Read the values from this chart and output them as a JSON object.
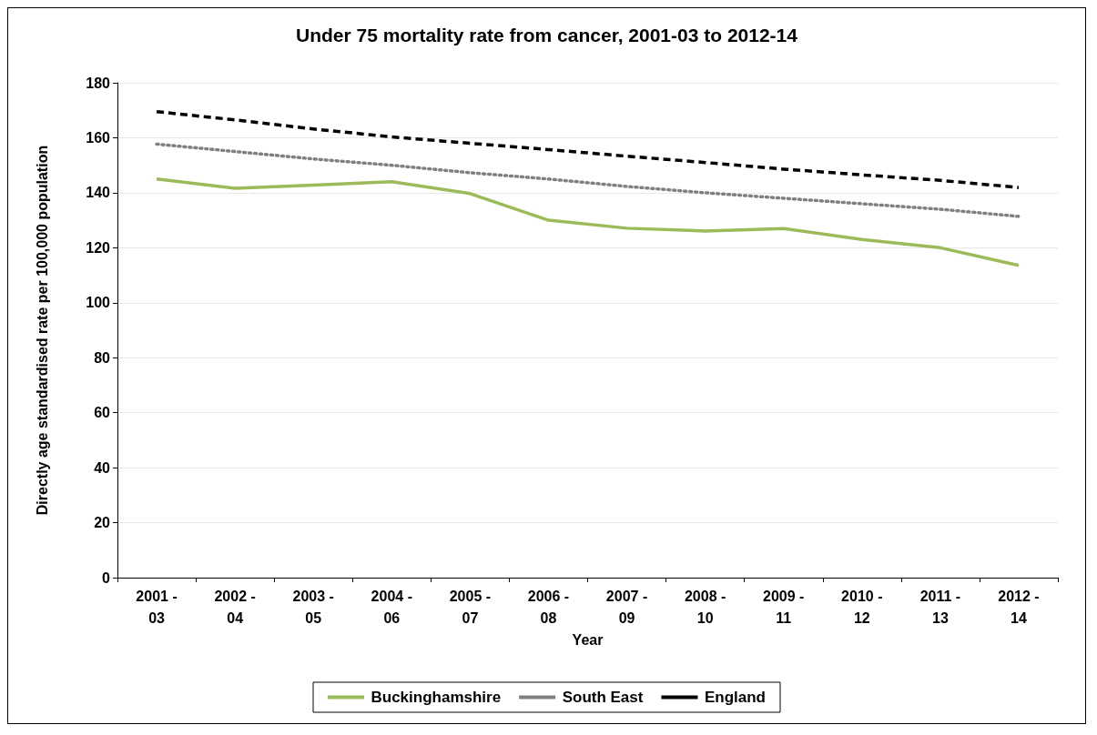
{
  "chart_data": {
    "type": "line",
    "title": "Under 75 mortality rate from cancer, 2001-03 to 2012-14",
    "xlabel": "Year",
    "ylabel": "Directly age standardised rate per 100,000 population",
    "categories": [
      "2001 - 03",
      "2002 - 04",
      "2003 - 05",
      "2004 - 06",
      "2005 - 07",
      "2006 - 08",
      "2007 - 09",
      "2008 - 10",
      "2009 - 11",
      "2010 - 12",
      "2011 - 13",
      "2012 - 14"
    ],
    "series": [
      {
        "name": "Buckinghamshire",
        "color": "#9bbb59",
        "line_style": "solid",
        "values": [
          145,
          141.6,
          142.8,
          144,
          139.7,
          130,
          127.1,
          126.1,
          127,
          123,
          120,
          113.6
        ]
      },
      {
        "name": "South East",
        "color": "#808080",
        "line_style": "dotted",
        "values": [
          157.7,
          155,
          152.3,
          150,
          147.3,
          145,
          142.3,
          140,
          138,
          136,
          134,
          131.4
        ]
      },
      {
        "name": "England",
        "color": "#000000",
        "line_style": "dashed",
        "values": [
          169.5,
          166.5,
          163.2,
          160.3,
          158,
          155.7,
          153.3,
          151,
          148.6,
          146.5,
          144.5,
          141.9
        ]
      }
    ],
    "ylim": [
      0,
      180
    ],
    "yticks": [
      0,
      20,
      40,
      60,
      80,
      100,
      120,
      140,
      160,
      180
    ],
    "grid": "y",
    "legend": "bottom",
    "marker": "none"
  }
}
